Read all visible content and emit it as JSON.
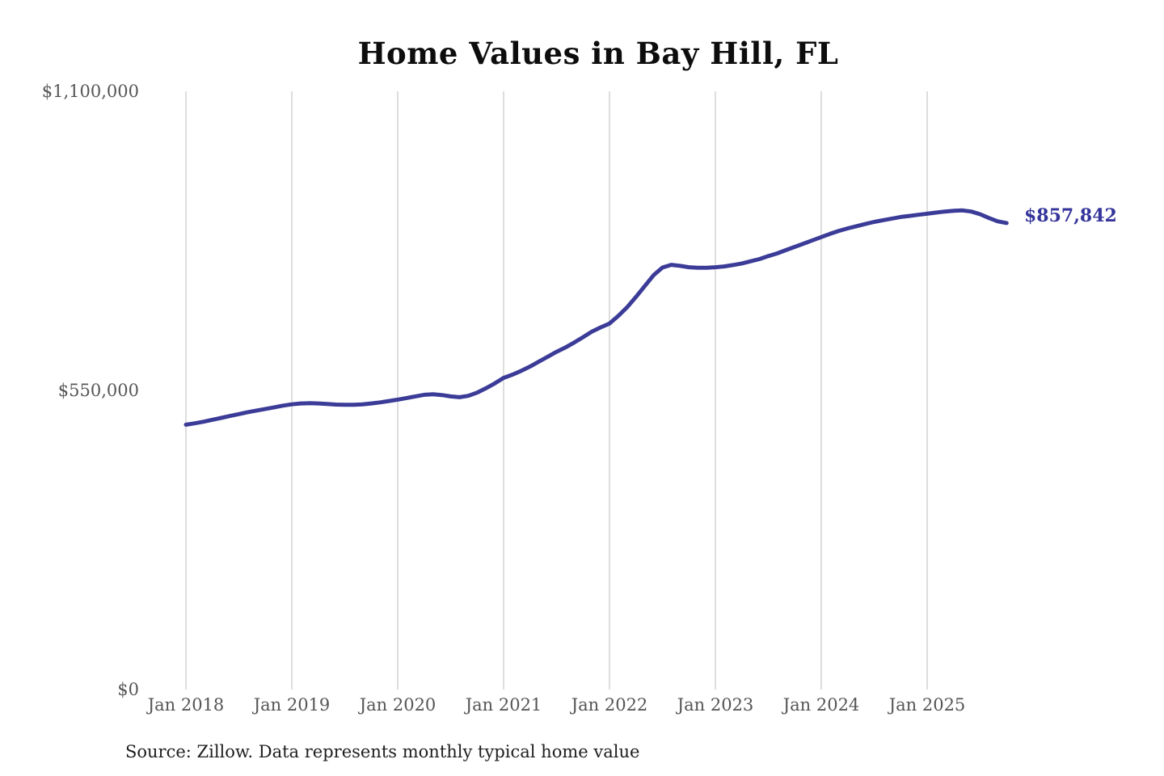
{
  "page": {
    "background_color": "#ffffff",
    "title_color": "#0d0d0d",
    "tick_label_color": "#555555",
    "gridline_color": "#cccccc"
  },
  "chart_data": {
    "type": "line",
    "title": "Home Values in Bay Hill, FL",
    "xlabel": "",
    "ylabel": "",
    "ylim": [
      0,
      1100000
    ],
    "grid": "vertical-only",
    "legend": "none",
    "line_color": "#3b3b98",
    "annotation_color": "#34349b",
    "x_tick_labels": [
      "Jan 2018",
      "Jan 2019",
      "Jan 2020",
      "Jan 2021",
      "Jan 2022",
      "Jan 2023",
      "Jan 2024",
      "Jan 2025"
    ],
    "y_ticks": [
      {
        "label": "$0",
        "value": 0
      },
      {
        "label": "$550,000",
        "value": 550000
      },
      {
        "label": "$1,100,000",
        "value": 1100000
      }
    ],
    "end_label": "$857,842",
    "end_value": 857842,
    "series": [
      {
        "name": "Typical home value",
        "unit": "USD",
        "x_start": "Jan 2018",
        "x_step": "1 month",
        "x_end": "Oct 2025",
        "values": [
          487000,
          489500,
          492500,
          496000,
          499500,
          503000,
          506500,
          510000,
          513000,
          516000,
          519000,
          522000,
          524500,
          526000,
          526500,
          526000,
          525000,
          524000,
          523500,
          523500,
          524500,
          526000,
          528000,
          530500,
          533000,
          536000,
          539000,
          542000,
          543000,
          541500,
          539000,
          537500,
          540000,
          546000,
          554000,
          563000,
          573000,
          579000,
          586000,
          594000,
          603000,
          612000,
          621000,
          629000,
          638000,
          648000,
          658000,
          666000,
          673000,
          687000,
          703000,
          722000,
          742000,
          762000,
          776000,
          781000,
          779000,
          776500,
          775500,
          775500,
          776500,
          778000,
          780500,
          783500,
          787500,
          791500,
          797000,
          802000,
          808000,
          814000,
          820000,
          826000,
          832000,
          838000,
          843500,
          848000,
          852000,
          856000,
          860000,
          863000,
          866000,
          869000,
          871000,
          873000,
          875000,
          877000,
          879000,
          880500,
          881000,
          879000,
          874000,
          867000,
          861000,
          857842
        ]
      }
    ],
    "source_note": "Source: Zillow. Data represents monthly typical home value"
  }
}
